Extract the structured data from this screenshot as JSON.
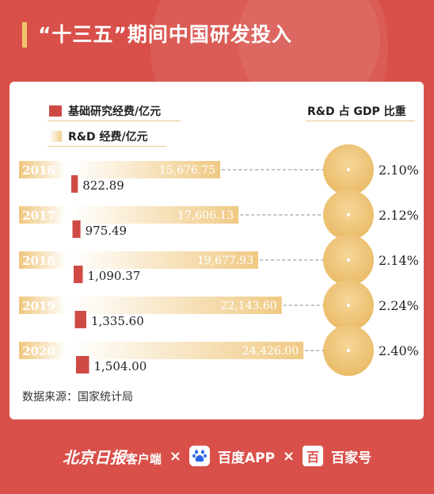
{
  "title": "“十三五”期间中国研发投入",
  "source": "数据来源：国家统计局",
  "colors": {
    "background": "#d9504a",
    "basic_research": "#cf4a44",
    "rd": "#f1cf8e",
    "gold_circle": "#eec57a",
    "accent_bar": "#f2c46a"
  },
  "footer": {
    "brand1": "北京日报",
    "brand1_sub": "客户端",
    "sep1": "×",
    "brand2": "百度APP",
    "sep2": "×",
    "brand3": "百家号",
    "brand3_icon_glyph": "百"
  },
  "chart_data": {
    "type": "bar",
    "categories": [
      "2016",
      "2017",
      "2018",
      "2019",
      "2020"
    ],
    "series": [
      {
        "name": "基础研究经费/亿元",
        "values": [
          822.89,
          975.49,
          1090.37,
          1335.6,
          1504.0
        ],
        "labels": [
          "822.89",
          "975.49",
          "1,090.37",
          "1,335.60",
          "1,504.00"
        ]
      },
      {
        "name": "R&D 经费/亿元",
        "values": [
          15676.75,
          17606.13,
          19677.93,
          22143.6,
          24426.0
        ],
        "labels": [
          "15,676.75",
          "17,606.13",
          "19,677.93",
          "22,143.60",
          "24,426.00"
        ]
      },
      {
        "name": "R&D 占 GDP 比重",
        "values": [
          2.1,
          2.12,
          2.14,
          2.24,
          2.4
        ],
        "labels": [
          "2.10%",
          "2.12%",
          "2.14%",
          "2.24%",
          "2.40%"
        ]
      }
    ],
    "legend": "top"
  }
}
